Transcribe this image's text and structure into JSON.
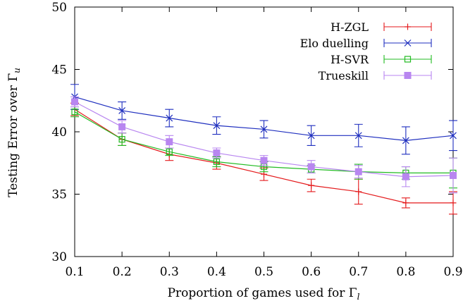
{
  "chart_data": {
    "type": "line",
    "x": [
      0.1,
      0.2,
      0.3,
      0.4,
      0.5,
      0.6,
      0.7,
      0.8,
      0.9
    ],
    "x_ticks": [
      "0.1",
      "0.2",
      "0.3",
      "0.4",
      "0.5",
      "0.6",
      "0.7",
      "0.8",
      "0.9"
    ],
    "y_ticks": [
      "30",
      "35",
      "40",
      "45",
      "50"
    ],
    "xlim": [
      0.1,
      0.9
    ],
    "ylim": [
      30,
      50
    ],
    "xlabel": "Proportion of games used for Γ",
    "xlabel_sub": "l",
    "ylabel": "Testing Error over Γ",
    "ylabel_sub": "u",
    "grid": false,
    "legend_position": "top-right",
    "series": [
      {
        "name": "H-ZGL",
        "color": "#e41a1c",
        "marker": "plus",
        "values": [
          41.8,
          39.4,
          38.2,
          37.5,
          36.6,
          35.7,
          35.2,
          34.3,
          34.3
        ],
        "errors": [
          0.5,
          0.5,
          0.5,
          0.5,
          0.5,
          0.5,
          1.0,
          0.4,
          0.9
        ]
      },
      {
        "name": "Elo duelling",
        "color": "#1f2fbf",
        "marker": "cross",
        "values": [
          42.8,
          41.7,
          41.1,
          40.5,
          40.2,
          39.7,
          39.7,
          39.3,
          39.7
        ],
        "errors": [
          1.0,
          0.7,
          0.7,
          0.7,
          0.7,
          0.8,
          0.9,
          1.1,
          1.2
        ]
      },
      {
        "name": "H-SVR",
        "color": "#22bb22",
        "marker": "square-open",
        "values": [
          41.6,
          39.4,
          38.4,
          37.6,
          37.2,
          37.0,
          36.8,
          36.7,
          36.7
        ],
        "errors": [
          0.4,
          0.5,
          0.3,
          0.4,
          0.4,
          0.3,
          0.6,
          0.5,
          1.2
        ]
      },
      {
        "name": "Trueskill",
        "color": "#b886f0",
        "marker": "square-filled",
        "values": [
          42.4,
          40.4,
          39.2,
          38.3,
          37.7,
          37.2,
          36.8,
          36.4,
          36.5
        ],
        "errors": [
          0.4,
          0.5,
          0.5,
          0.4,
          0.4,
          0.5,
          0.5,
          0.8,
          1.4
        ]
      }
    ]
  }
}
